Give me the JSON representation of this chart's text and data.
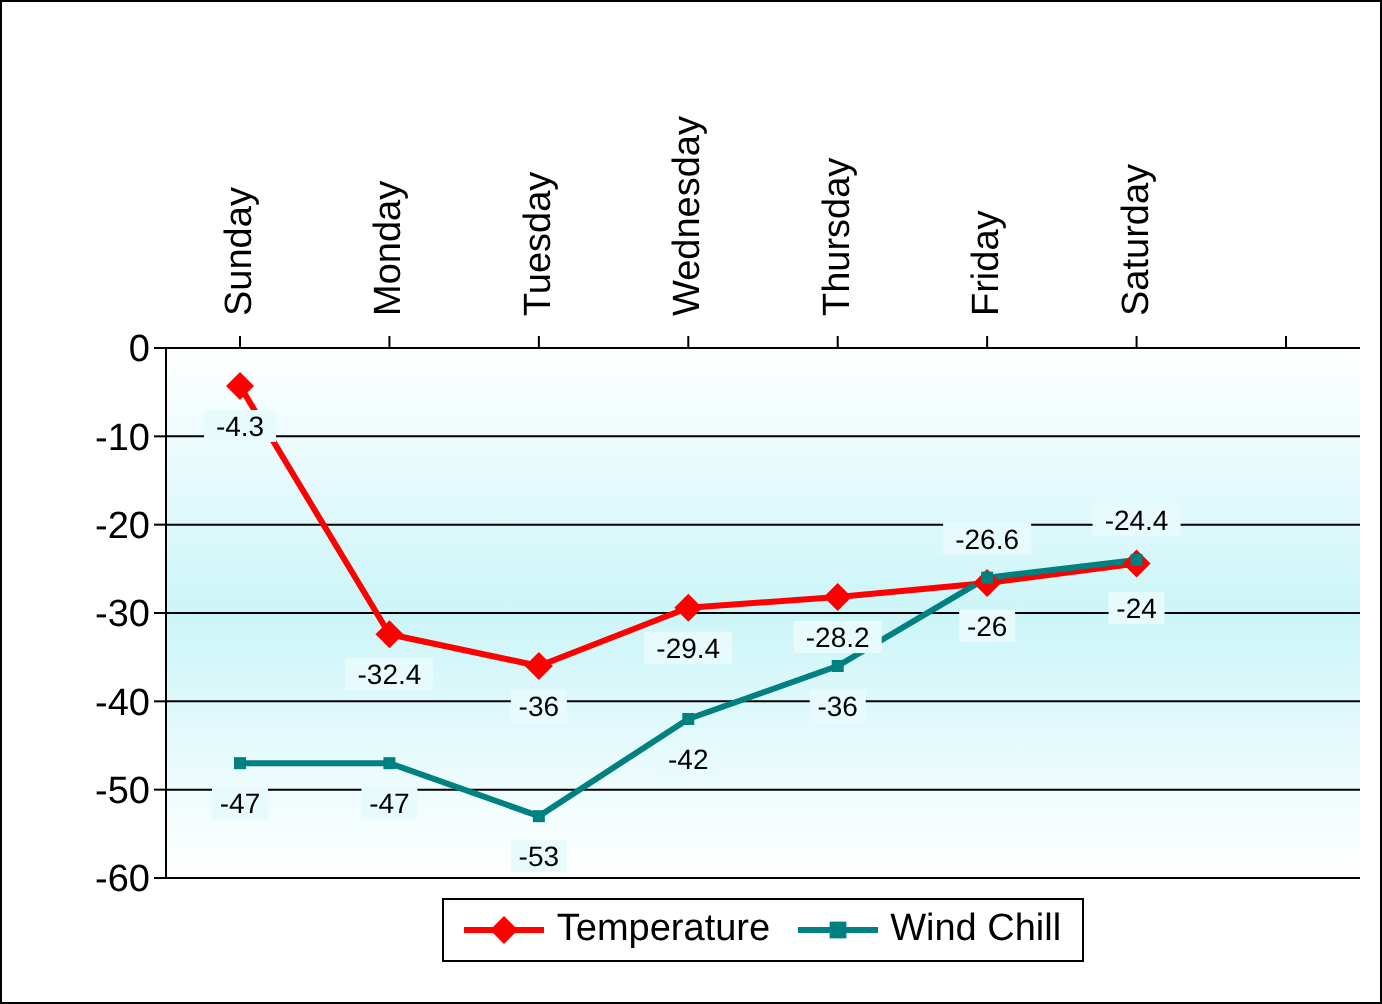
{
  "chart_data": {
    "type": "line",
    "categories": [
      "Sunday",
      "Monday",
      "Tuesday",
      "Wednesday",
      "Thursday",
      "Friday",
      "Saturday",
      null
    ],
    "series": [
      {
        "name": "Temperature",
        "color": "#ff0000",
        "marker": "diamond",
        "values": [
          -4.3,
          -32.4,
          -36,
          -29.4,
          -28.2,
          -26.6,
          -24.4,
          null
        ]
      },
      {
        "name": "Wind Chill",
        "color": "#008080",
        "marker": "square",
        "values": [
          -47,
          -47,
          -53,
          -42,
          -36,
          -26,
          -24,
          null
        ]
      }
    ],
    "ylim": [
      -60,
      0
    ],
    "yticks": [
      0,
      -10,
      -20,
      -30,
      -40,
      -50,
      -60
    ],
    "grid": "y",
    "legend": "bottom",
    "data_labels": true
  }
}
